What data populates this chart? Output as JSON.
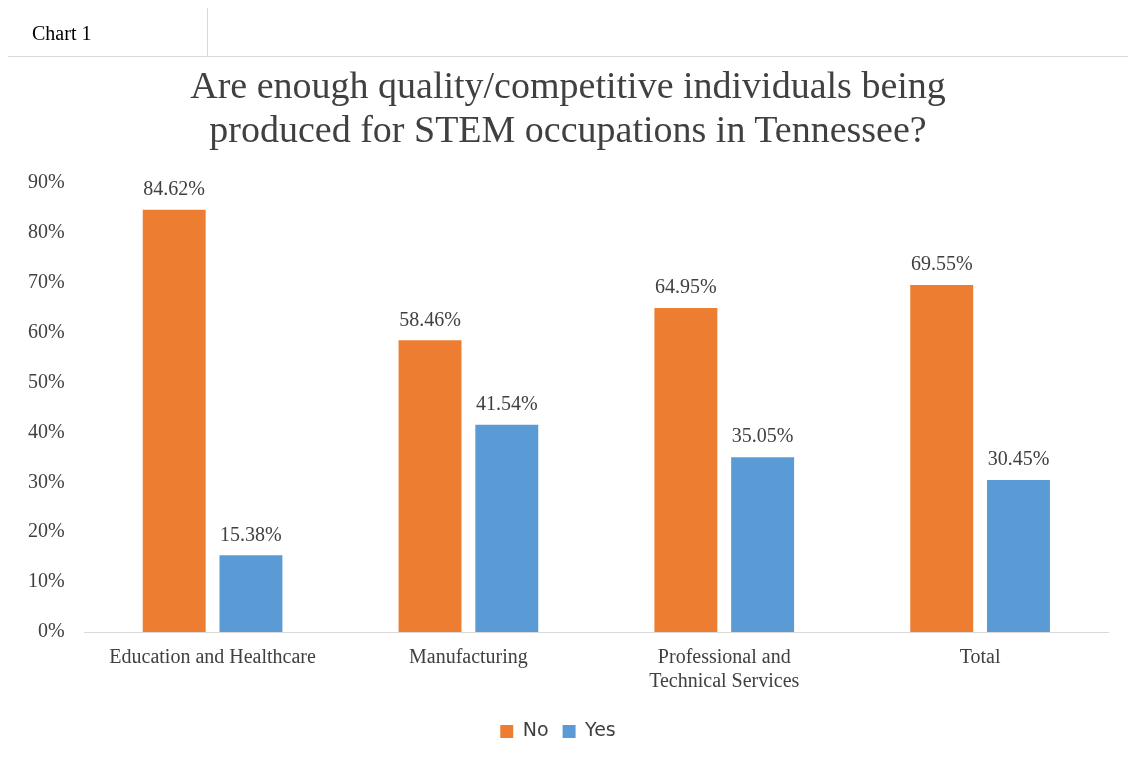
{
  "chart_data": {
    "type": "bar",
    "title": "Are enough quality/competitive  individuals being produced for STEM occupations in Tennessee?",
    "annotations": [
      "Chart 1"
    ],
    "categories": [
      "Education and Healthcare",
      "Manufacturing",
      "Professional and Technical Services",
      "Total"
    ],
    "series": [
      {
        "name": "No",
        "color": "#ed7d31",
        "values": [
          84.62,
          58.46,
          64.95,
          69.55
        ],
        "value_labels": [
          "84.62%",
          "58.46%",
          "64.95%",
          "69.55%"
        ]
      },
      {
        "name": "Yes",
        "color": "#5b9bd5",
        "values": [
          15.38,
          41.54,
          35.05,
          30.45
        ],
        "value_labels": [
          "15.38%",
          "41.54%",
          "35.05%",
          "30.45%"
        ]
      }
    ],
    "ylim": [
      0,
      90
    ],
    "yticks": [
      {
        "value": 0,
        "label": "0%"
      },
      {
        "value": 10,
        "label": "10%"
      },
      {
        "value": 20,
        "label": "20%"
      },
      {
        "value": 30,
        "label": "30%"
      },
      {
        "value": 40,
        "label": "40%"
      },
      {
        "value": 50,
        "label": "50%"
      },
      {
        "value": 60,
        "label": "60%"
      },
      {
        "value": 70,
        "label": "70%"
      },
      {
        "value": 80,
        "label": "80%"
      },
      {
        "value": 90,
        "label": "90%"
      }
    ],
    "grid": false,
    "legend": "bottom"
  }
}
